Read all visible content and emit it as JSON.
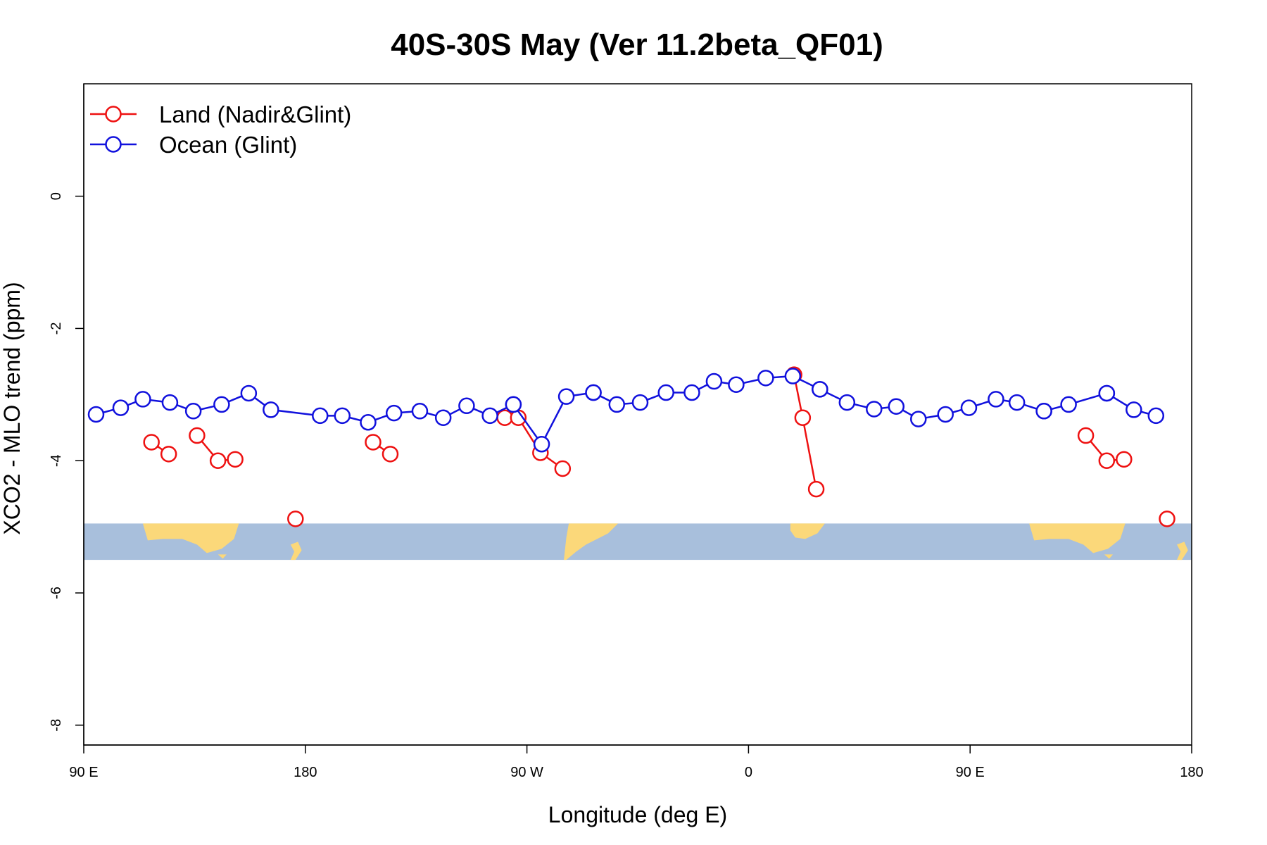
{
  "chart_data": {
    "type": "line",
    "title": "40S-30S May (Ver 11.2beta_QF01)",
    "xlabel": "Longitude (deg E)",
    "ylabel": "XCO2 - MLO trend (ppm)",
    "xlim": [
      90,
      540
    ],
    "ylim": [
      -8.3,
      1.7
    ],
    "x_ticks": [
      {
        "value": 90,
        "label": "90 E"
      },
      {
        "value": 180,
        "label": "180"
      },
      {
        "value": 270,
        "label": "90 W"
      },
      {
        "value": 360,
        "label": "0"
      },
      {
        "value": 450,
        "label": "90 E"
      },
      {
        "value": 540,
        "label": "180"
      }
    ],
    "y_ticks": [
      {
        "value": 0,
        "label": "0"
      },
      {
        "value": -2,
        "label": "-2"
      },
      {
        "value": -4,
        "label": "-4"
      },
      {
        "value": -6,
        "label": "-6"
      },
      {
        "value": -8,
        "label": "-8"
      }
    ],
    "legend_position": "top-left",
    "grid": false,
    "map_band": {
      "y_range": [
        -5.5,
        -4.95
      ],
      "ocean_color": "#a8bfdc",
      "land_color": "#fbd87a"
    },
    "series": [
      {
        "name": "Land (Nadir&Glint)",
        "color": "#ee1111",
        "segments": [
          {
            "x": [
              117.5,
              124.5
            ],
            "y": [
              -3.72,
              -3.9
            ]
          },
          {
            "x": [
              136,
              144.5,
              151.5
            ],
            "y": [
              -3.62,
              -4.0,
              -3.98
            ]
          },
          {
            "x": [
              176
            ],
            "y": [
              -4.88
            ]
          },
          {
            "x": [
              261
            ],
            "y": [
              -3.35
            ]
          },
          {
            "x": [
              266.5,
              275.5,
              284.5
            ],
            "y": [
              -3.35,
              -3.88,
              -4.12
            ]
          },
          {
            "x": [
              378.5,
              382,
              387.5
            ],
            "y": [
              -2.7,
              -3.35,
              -4.43
            ]
          },
          {
            "x": [
              207.5,
              214.5
            ],
            "y": [
              -3.72,
              -3.9
            ]
          },
          {
            "x": [
              497,
              505.5,
              512.5
            ],
            "y": [
              -3.62,
              -4.0,
              -3.98
            ]
          },
          {
            "x": [
              530
            ],
            "y": [
              -4.88
            ]
          }
        ]
      },
      {
        "name": "Ocean (Glint)",
        "color": "#1111dd",
        "segments": [
          {
            "x": [
              95,
              105,
              114,
              125,
              134.5,
              146,
              157,
              166,
              186,
              195,
              205.5,
              216,
              226.5,
              236,
              245.5,
              255,
              264.5
            ],
            "y": [
              -3.3,
              -3.2,
              -3.07,
              -3.12,
              -3.25,
              -3.15,
              -2.98,
              -3.23,
              -3.32,
              -3.32,
              -3.42,
              -3.28,
              -3.25,
              -3.35,
              -3.17,
              -3.32,
              -3.15
            ]
          },
          {
            "x": [
              264.5,
              276,
              286,
              297
            ],
            "y": [
              -3.15,
              -3.75,
              -3.03,
              -2.97
            ]
          },
          {
            "x": [
              297,
              306.5,
              316,
              326.5,
              337,
              346,
              355,
              367,
              378,
              389
            ],
            "y": [
              -2.97,
              -3.15,
              -3.12,
              -2.97,
              -2.97,
              -2.8,
              -2.85,
              -2.75,
              -2.72,
              -2.92
            ]
          },
          {
            "x": [
              389,
              400,
              411,
              420,
              429,
              440,
              449.5,
              460.5,
              469,
              480
            ],
            "y": [
              -2.92,
              -3.12,
              -3.22,
              -3.18,
              -3.37,
              -3.3,
              -3.2,
              -3.07,
              -3.12,
              -3.25
            ]
          },
          {
            "x": [
              480,
              490,
              505.5
            ],
            "y": [
              -3.25,
              -3.15,
              -2.98
            ]
          },
          {
            "x": [
              505.5,
              516.5,
              525.5
            ],
            "y": [
              -2.98,
              -3.23,
              -3.32
            ]
          }
        ]
      }
    ]
  }
}
